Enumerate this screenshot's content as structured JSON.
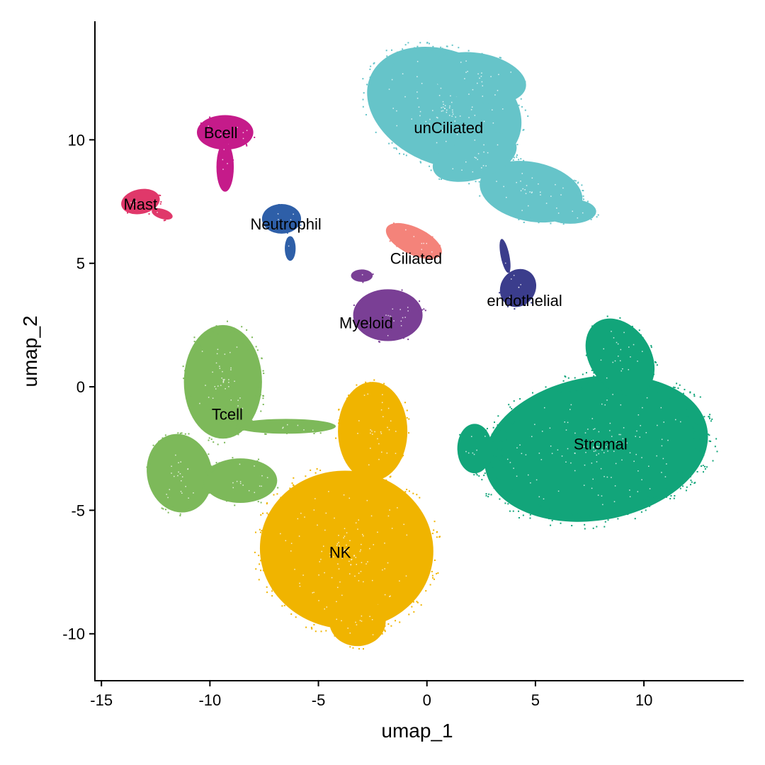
{
  "chart_data": {
    "type": "scatter",
    "xlabel": "umap_1",
    "ylabel": "umap_2",
    "xlim": [
      -15.3,
      14.6
    ],
    "ylim": [
      -11.9,
      14.8
    ],
    "x_ticks": [
      -15,
      -10,
      -5,
      0,
      5,
      10
    ],
    "y_ticks": [
      -10,
      -5,
      0,
      5,
      10
    ],
    "x_tick_labels": [
      "-15",
      "-10",
      "-5",
      "0",
      "5",
      "10"
    ],
    "y_tick_labels": [
      "-10",
      "-5",
      "0",
      "5",
      "10"
    ],
    "grid": false,
    "legend": "none",
    "clusters": [
      {
        "name": "unCiliated",
        "color": "#66C4C9",
        "label_x": 1.0,
        "label_y": 10.5
      },
      {
        "name": "Bcell",
        "color": "#C51B8A",
        "label_x": -9.5,
        "label_y": 10.3
      },
      {
        "name": "Mast",
        "color": "#E0386A",
        "label_x": -13.2,
        "label_y": 7.4
      },
      {
        "name": "Neutrophil",
        "color": "#2E5FA8",
        "label_x": -6.5,
        "label_y": 6.6
      },
      {
        "name": "Ciliated",
        "color": "#F4837A",
        "label_x": -0.5,
        "label_y": 5.2
      },
      {
        "name": "endothelial",
        "color": "#3B3D8C",
        "label_x": 4.5,
        "label_y": 3.5
      },
      {
        "name": "Myeloid",
        "color": "#7A3F95",
        "label_x": -2.8,
        "label_y": 2.6
      },
      {
        "name": "Tcell",
        "color": "#7DB95A",
        "label_x": -9.2,
        "label_y": -1.1
      },
      {
        "name": "Stromal",
        "color": "#12A57A",
        "label_x": 8.0,
        "label_y": -2.3
      },
      {
        "name": "NK",
        "color": "#F0B400",
        "label_x": -4.0,
        "label_y": -6.7
      }
    ]
  }
}
